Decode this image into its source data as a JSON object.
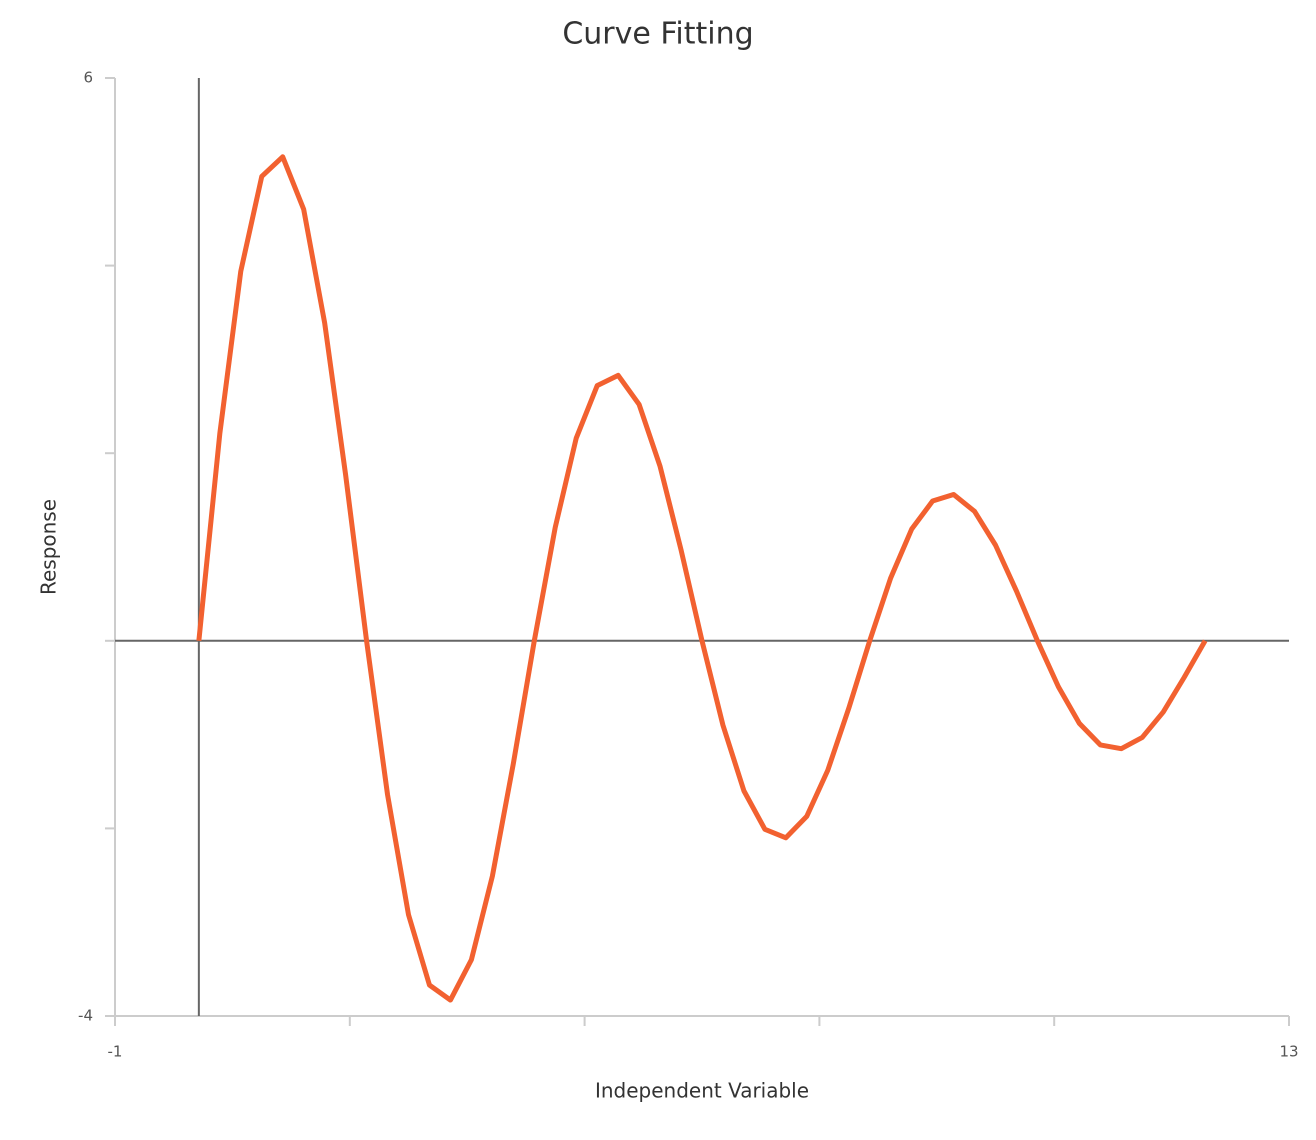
{
  "chart_data": {
    "type": "line",
    "title": "Curve Fitting",
    "x_label": "Independent Variable",
    "y_label": "Response",
    "x": [
      0,
      0.25,
      0.5,
      0.75,
      1,
      1.25,
      1.5,
      1.75,
      2,
      2.25,
      2.5,
      2.75,
      3,
      3.25,
      3.5,
      3.75,
      4,
      4.25,
      4.5,
      4.75,
      5,
      5.25,
      5.5,
      5.75,
      6,
      6.25,
      6.5,
      6.75,
      7,
      7.25,
      7.5,
      7.75,
      8,
      8.25,
      8.5,
      8.75,
      9,
      9.25,
      9.5,
      9.75,
      10,
      10.25,
      10.5,
      10.75,
      11,
      11.25,
      11.5,
      11.75,
      12
    ],
    "series": [
      {
        "color": "#f26130",
        "values": [
          0,
          2.21,
          3.94,
          4.95,
          5.16,
          4.6,
          3.39,
          1.77,
          0,
          -1.64,
          -2.92,
          -3.67,
          -3.83,
          -3.4,
          -2.51,
          -1.31,
          0,
          1.21,
          2.16,
          2.72,
          2.83,
          2.52,
          1.86,
          0.97,
          0,
          -0.9,
          -1.6,
          -2.01,
          -2.1,
          -1.87,
          -1.38,
          -0.72,
          0,
          0.67,
          1.19,
          1.49,
          1.56,
          1.38,
          1.02,
          0.53,
          0,
          -0.49,
          -0.88,
          -1.11,
          -1.15,
          -1.03,
          -0.76,
          -0.39,
          0
        ]
      }
    ],
    "xlim": [
      -1,
      13
    ],
    "xticks": [
      -1,
      13
    ],
    "xticks_minor": [
      1.8,
      4.6,
      7.4,
      10.2
    ],
    "ylim": [
      -4,
      6
    ],
    "yticks": [
      -4,
      6
    ],
    "yticks_minor": [
      -2,
      0,
      2,
      4
    ],
    "grid": false
  }
}
